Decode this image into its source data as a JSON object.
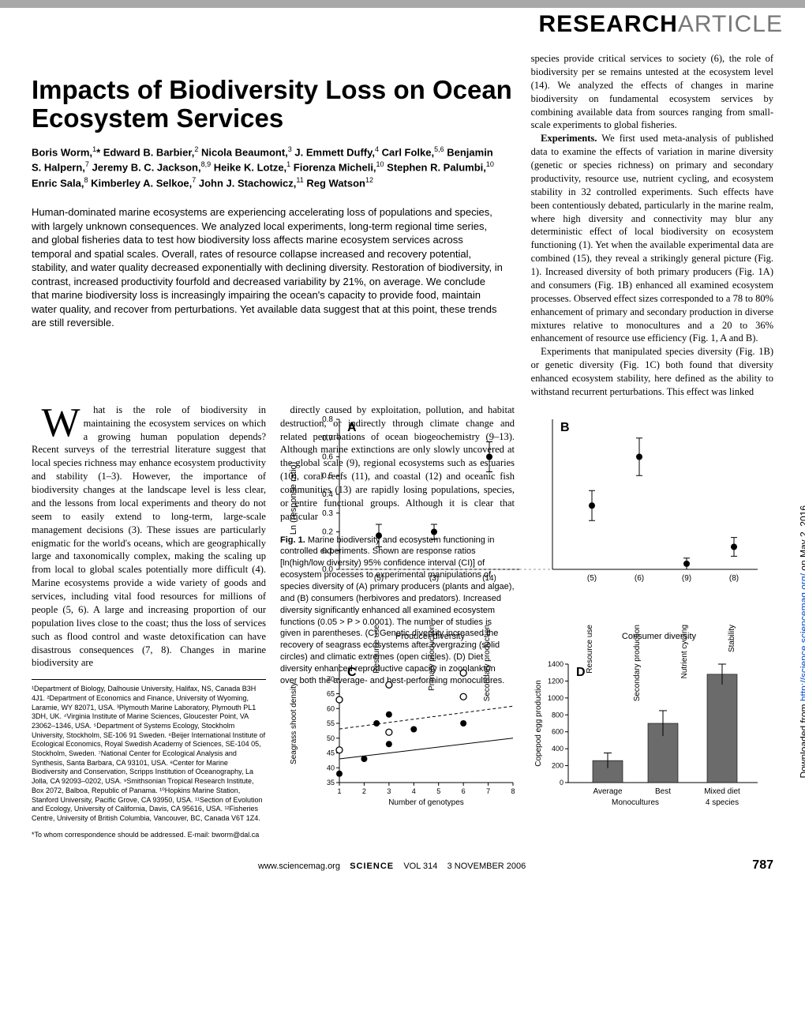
{
  "banner": {
    "bold": "RESEARCH",
    "light": "ARTICLE"
  },
  "title": "Impacts of Biodiversity Loss on Ocean Ecosystem Services",
  "authors_html": "Boris Worm,<sup>1</sup>* Edward B. Barbier,<sup>2</sup> Nicola Beaumont,<sup>3</sup> J. Emmett Duffy,<sup>4</sup> Carl Folke,<sup>5,6</sup> Benjamin S. Halpern,<sup>7</sup> Jeremy B. C. Jackson,<sup>8,9</sup> Heike K. Lotze,<sup>1</sup> Fiorenza Micheli,<sup>10</sup> Stephen R. Palumbi,<sup>10</sup> Enric Sala,<sup>8</sup> Kimberley A. Selkoe,<sup>7</sup> John J. Stachowicz,<sup>11</sup> Reg Watson<sup>12</sup>",
  "abstract": "Human-dominated marine ecosystems are experiencing accelerating loss of populations and species, with largely unknown consequences. We analyzed local experiments, long-term regional time series, and global fisheries data to test how biodiversity loss affects marine ecosystem services across temporal and spatial scales. Overall, rates of resource collapse increased and recovery potential, stability, and water quality decreased exponentially with declining diversity. Restoration of biodiversity, in contrast, increased productivity fourfold and decreased variability by 21%, on average. We conclude that marine biodiversity loss is increasingly impairing the ocean's capacity to provide food, maintain water quality, and recover from perturbations. Yet available data suggest that at this point, these trends are still reversible.",
  "body_col1a": "hat is the role of biodiversity in maintaining the ecosystem services on which a growing human population depends? Recent surveys of the terrestrial literature suggest that local species richness may enhance ecosystem productivity and stability (1–3). However, the importance of biodiversity changes at the landscape level is less clear, and the lessons from local experiments and theory do not seem to easily extend to long-term, large-scale management decisions (3). These issues are particularly enigmatic for the world's oceans, which are geographically large and taxonomically complex, making the scaling up from local to global scales potentially more difficult (4). Marine ecosystems provide a wide variety of goods and services, including vital food resources for millions of people (5, 6). A large and increasing proportion of our population lives close to the coast; thus the loss of services such as flood control and waste detoxification can have disastrous consequences (7, 8). Changes in marine biodiversity are",
  "body_col2a": "directly caused by exploitation, pollution, and habitat destruction, or indirectly through climate change and related perturbations of ocean biogeochemistry (9–13). Although marine extinctions are only slowly uncovered at the global scale (9), regional ecosystems such as estuaries (10), coral reefs (11), and coastal (12) and oceanic fish communities (13) are rapidly losing populations, species, or entire functional groups. Although it is clear that particular",
  "body_col3a": "species provide critical services to society (6), the role of biodiversity per se remains untested at the ecosystem level (14). We analyzed the effects of changes in marine biodiversity on fundamental ecosystem services by combining available data from sources ranging from small-scale experiments to global fisheries.",
  "body_col3b": "We first used meta-analysis of published data to examine the effects of variation in marine diversity (genetic or species richness) on primary and secondary productivity, resource use, nutrient cycling, and ecosystem stability in 32 controlled experiments. Such effects have been contentiously debated, particularly in the marine realm, where high diversity and connectivity may blur any deterministic effect of local biodiversity on ecosystem functioning (1). Yet when the available experimental data are combined (15), they reveal a strikingly general picture (Fig. 1). Increased diversity of both primary producers (Fig. 1A) and consumers (Fig. 1B) enhanced all examined ecosystem processes. Observed effect sizes corresponded to a 78 to 80% enhancement of primary and secondary production in diverse mixtures relative to monocultures and a 20 to 36% enhancement of resource use efficiency (Fig. 1, A and B).",
  "body_col3c": "Experiments that manipulated species diversity (Fig. 1B) or genetic diversity (Fig. 1C) both found that diversity enhanced ecosystem stability, here defined as the ability to withstand recurrent perturbations. This effect was linked",
  "exp_head": "Experiments.",
  "affiliations": "¹Department of Biology, Dalhousie University, Halifax, NS, Canada B3H 4J1. ²Department of Economics and Finance, University of Wyoming, Laramie, WY 82071, USA. ³Plymouth Marine Laboratory, Plymouth PL1 3DH, UK. ⁴Virginia Institute of Marine Sciences, Gloucester Point, VA 23062–1346, USA. ⁵Department of Systems Ecology, Stockholm University, Stockholm, SE-106 91 Sweden. ⁶Beijer International Institute of Ecological Economics, Royal Swedish Academy of Sciences, SE-104 05, Stockholm, Sweden. ⁷National Center for Ecological Analysis and Synthesis, Santa Barbara, CA 93101, USA. ⁸Center for Marine Biodiversity and Conservation, Scripps Institution of Oceanography, La Jolla, CA 92093–0202, USA. ⁹Smithsonian Tropical Research Institute, Box 2072, Balboa, Republic of Panama. ¹⁰Hopkins Marine Station, Stanford University, Pacific Grove, CA 93950, USA. ¹¹Section of Evolution and Ecology, University of California, Davis, CA 95616, USA. ¹²Fisheries Centre, University of British Columbia, Vancouver, BC, Canada V6T 1Z4.",
  "correspondence": "*To whom correspondence should be addressed. E-mail: bworm@dal.ca",
  "fig1_caption": "Marine biodiversity and ecosystem functioning in controlled experiments. Shown are response ratios [ln(high/low diversity) 95% confidence interval (CI)] of ecosystem processes to experimental manipulations of species diversity of (A) primary producers (plants and algae), and (B) consumers (herbivores and predators). Increased diversity significantly enhanced all examined ecosystem functions (0.05 > P > 0.0001). The number of studies is given in parentheses. (C) Genetic diversity increased the recovery of seagrass ecosystems after overgrazing (solid circles) and climatic extremes (open circles). (D) Diet diversity enhanced reproductive capacity in zooplankton over both the average- and best-performing monocultures.",
  "fig1_head": "Fig. 1.",
  "chart": {
    "panelA": {
      "type": "errorbar",
      "ylabel": "Ln (response ratio)",
      "ylim": [
        0,
        0.8
      ],
      "yticks": [
        0,
        0.1,
        0.2,
        0.3,
        0.4,
        0.5,
        0.6,
        0.7,
        0.8
      ],
      "categories": [
        "Resource use",
        "Primary production",
        "Secondary production"
      ],
      "n": [
        "(5)",
        "(3)",
        "(14)"
      ],
      "values": [
        0.18,
        0.2,
        0.6
      ],
      "err": [
        0.06,
        0.04,
        0.08
      ],
      "xtitle": "Producer diversity",
      "point_color": "#000000",
      "tick_fontsize": 10,
      "label_fontsize": 11
    },
    "panelB": {
      "type": "errorbar",
      "ylim": [
        0,
        0.8
      ],
      "categories": [
        "Resource use",
        "Secondary production",
        "Nutrient cycling",
        "Stability"
      ],
      "n": [
        "(5)",
        "(6)",
        "(9)",
        "(8)"
      ],
      "values": [
        0.34,
        0.6,
        0.03,
        0.12
      ],
      "err": [
        0.08,
        0.1,
        0.03,
        0.05
      ],
      "xtitle": "Consumer diversity",
      "point_color": "#000000"
    },
    "panelC": {
      "type": "scatter-line",
      "ylabel": "Seagrass shoot density",
      "xlabel": "Number of genotypes",
      "xlim": [
        1,
        8
      ],
      "xticks": [
        1,
        2,
        3,
        4,
        5,
        6,
        7,
        8
      ],
      "ylim": [
        35,
        75
      ],
      "yticks": [
        35,
        40,
        45,
        50,
        55,
        60,
        65,
        70
      ],
      "series": [
        {
          "marker": "solid",
          "x": [
            1,
            2,
            2.5,
            3,
            3,
            4,
            6
          ],
          "y": [
            38,
            43,
            55,
            58,
            48,
            53,
            55
          ],
          "line_a": 1,
          "line_b": 42
        },
        {
          "marker": "open",
          "x": [
            1,
            1,
            3,
            3,
            6,
            6
          ],
          "y": [
            46,
            63,
            52,
            68,
            64,
            72
          ],
          "line_a": 1.1,
          "line_b": 52
        }
      ],
      "point_color": "#000000"
    },
    "panelD": {
      "type": "bar",
      "ylabel": "Copepod egg production",
      "ylim": [
        0,
        1400
      ],
      "yticks": [
        0,
        200,
        400,
        600,
        800,
        1000,
        1200,
        1400
      ],
      "groups": [
        "Average",
        "Best",
        "Mixed diet"
      ],
      "group_sub": [
        "Monocultures",
        "Monocultures",
        "4 species"
      ],
      "values": [
        260,
        700,
        1280
      ],
      "err": [
        90,
        150,
        120
      ],
      "bar_color": "#6b6b6b",
      "bar_width": 0.55
    },
    "bg": "#ffffff",
    "axis_color": "#000000",
    "grid_color": "#d0d0d0",
    "zero_line_color": "#999999"
  },
  "footer": {
    "url": "www.sciencemag.org",
    "journal": "SCIENCE",
    "vol": "VOL 314",
    "date": "3 NOVEMBER 2006",
    "page": "787"
  },
  "side_text_prefix": "Downloaded from ",
  "side_link": "http://science.sciencemag.org/",
  "side_text_suffix": " on May 2, 2016"
}
